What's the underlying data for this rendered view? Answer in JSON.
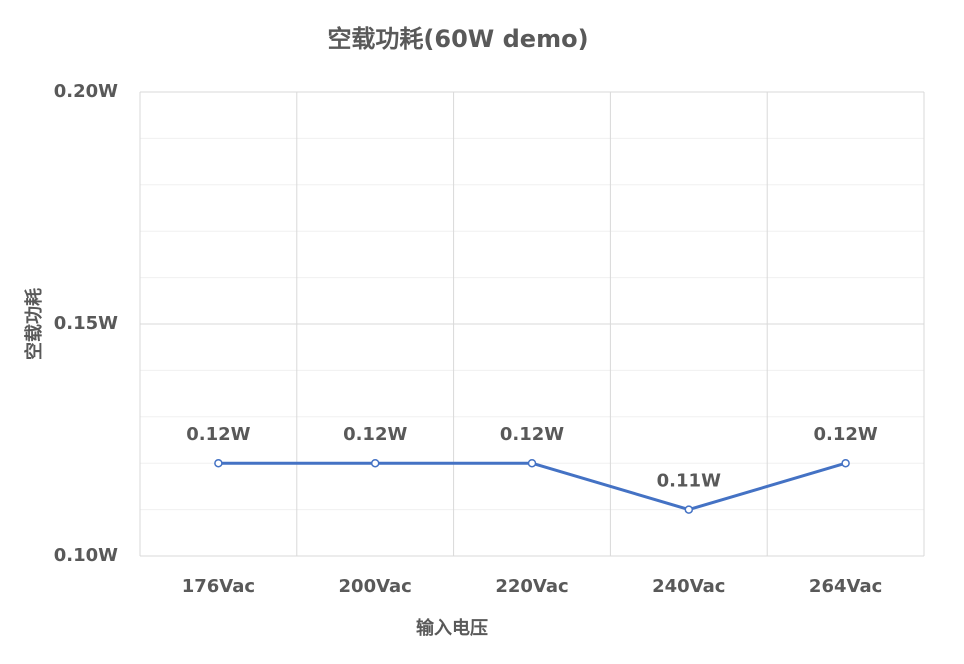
{
  "chart_data": {
    "type": "line",
    "title": "空载功耗(60W demo)",
    "x_label": "输入电压",
    "y_label": "空载功耗",
    "categories": [
      "176Vac",
      "200Vac",
      "220Vac",
      "240Vac",
      "264Vac"
    ],
    "series": [
      {
        "color": "#4472c4",
        "values": [
          0.12,
          0.12,
          0.12,
          0.11,
          0.12
        ],
        "value_labels": [
          "0.12W",
          "0.12W",
          "0.12W",
          "0.11W",
          "0.12W"
        ]
      }
    ],
    "ylim": [
      0.1,
      0.2
    ],
    "yticks": [
      {
        "value": 0.1,
        "label": "0.10W"
      },
      {
        "value": 0.15,
        "label": "0.15W"
      },
      {
        "value": 0.2,
        "label": "0.20W"
      }
    ],
    "minor_yticks": [
      0.11,
      0.12,
      0.13,
      0.14,
      0.16,
      0.17,
      0.18,
      0.19
    ],
    "grid": true
  }
}
